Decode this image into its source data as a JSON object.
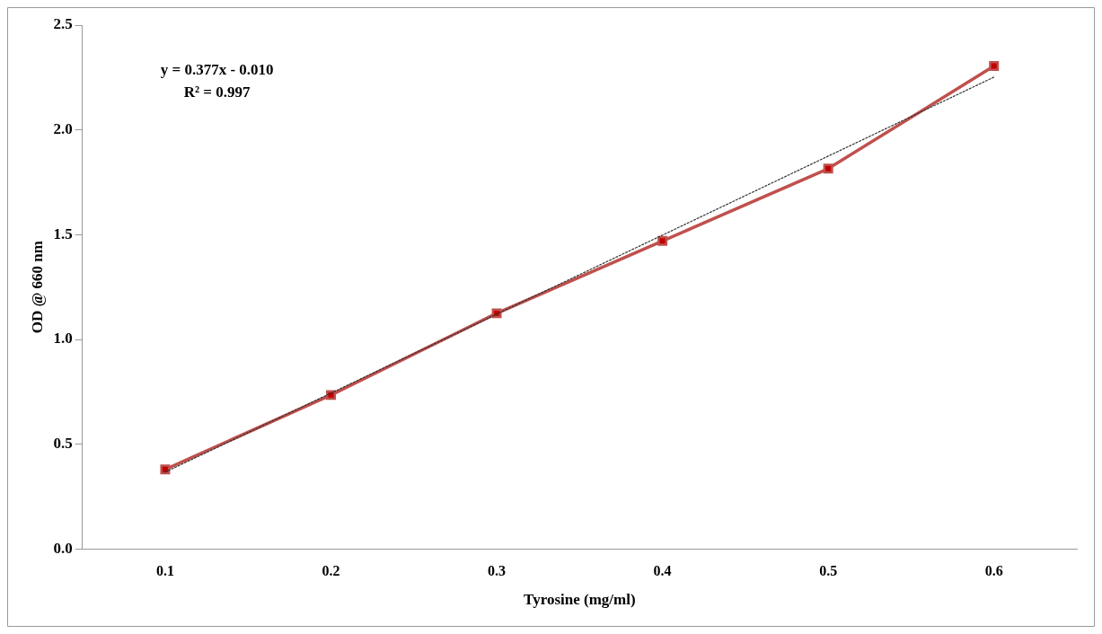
{
  "chart_data": {
    "type": "line",
    "xlabel": "Tyrosine (mg/ml)",
    "ylabel": "OD @ 660 nm",
    "categories": [
      "0.1",
      "0.2",
      "0.3",
      "0.4",
      "0.5",
      "0.6"
    ],
    "series": [
      {
        "color": "#c0504d",
        "values": [
          0.38,
          0.735,
          1.125,
          1.47,
          1.815,
          2.305
        ],
        "marker": "square"
      },
      {
        "type": "line",
        "color": "#333333",
        "values": [
          0.367,
          0.744,
          1.121,
          1.498,
          1.875,
          2.252
        ],
        "line_style": "dotted",
        "marker": "none"
      }
    ],
    "ylim": [
      0,
      2.5
    ],
    "yticks": [
      {
        "value": 0,
        "label": "0.0"
      },
      0.5,
      {
        "value": 1,
        "label": "1.0"
      },
      1.5,
      {
        "value": 2,
        "label": "2.0"
      },
      2.5
    ],
    "annotations": [
      "y = 0.377x - 0.010",
      "R² = 0.997"
    ],
    "grid": false,
    "legend": false
  }
}
